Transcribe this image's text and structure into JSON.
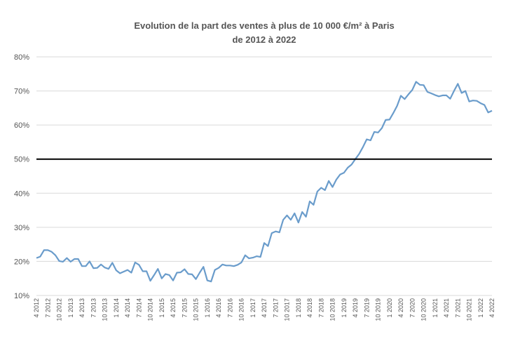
{
  "chart_data": {
    "type": "line",
    "title": "Evolution de la part des ventes à plus de 10 000 €/m² à Paris",
    "subtitle": "de 2012 à 2022",
    "xlabel": "",
    "ylabel": "",
    "ylim": [
      0.1,
      0.8
    ],
    "yticks": [
      "10%",
      "20%",
      "30%",
      "40%",
      "50%",
      "60%",
      "70%",
      "80%"
    ],
    "grid": true,
    "x_tick_labels": [
      "4 2012",
      "7 2012",
      "10 2012",
      "1 2013",
      "4 2013",
      "7 2013",
      "10 2013",
      "1 2014",
      "4 2014",
      "7 2014",
      "10 2014",
      "1 2015",
      "4 2015",
      "7 2015",
      "10 2015",
      "1 2016",
      "4 2016",
      "7 2016",
      "10 2016",
      "1 2017",
      "4 2017",
      "7 2017",
      "10 2017",
      "1 2018",
      "4 2018",
      "7 2018",
      "10 2018",
      "1 2019",
      "4 2019",
      "7 2019",
      "10 2019",
      "1 2020",
      "4 2020",
      "7 2020",
      "10 2020",
      "1 2021",
      "4 2021",
      "7 2021",
      "10 2021",
      "1 2022",
      "4 2022"
    ],
    "reference_line": {
      "y": 0.5,
      "color": "#000000"
    },
    "series": [
      {
        "color": "#6a9ccb",
        "start": "2012-04",
        "frequency": "monthly",
        "values": [
          0.21,
          0.214,
          0.233,
          0.233,
          0.228,
          0.218,
          0.201,
          0.199,
          0.21,
          0.199,
          0.207,
          0.207,
          0.186,
          0.186,
          0.2,
          0.18,
          0.181,
          0.191,
          0.182,
          0.178,
          0.196,
          0.174,
          0.165,
          0.17,
          0.175,
          0.167,
          0.197,
          0.19,
          0.171,
          0.171,
          0.143,
          0.16,
          0.178,
          0.15,
          0.163,
          0.16,
          0.144,
          0.167,
          0.168,
          0.177,
          0.163,
          0.162,
          0.148,
          0.167,
          0.184,
          0.144,
          0.141,
          0.175,
          0.181,
          0.191,
          0.188,
          0.188,
          0.186,
          0.19,
          0.197,
          0.218,
          0.209,
          0.211,
          0.215,
          0.213,
          0.254,
          0.245,
          0.283,
          0.288,
          0.285,
          0.322,
          0.335,
          0.322,
          0.341,
          0.314,
          0.345,
          0.331,
          0.376,
          0.366,
          0.405,
          0.416,
          0.409,
          0.436,
          0.418,
          0.44,
          0.455,
          0.46,
          0.475,
          0.484,
          0.5,
          0.515,
          0.535,
          0.558,
          0.555,
          0.58,
          0.578,
          0.591,
          0.615,
          0.616,
          0.635,
          0.656,
          0.686,
          0.676,
          0.69,
          0.703,
          0.727,
          0.718,
          0.717,
          0.697,
          0.693,
          0.688,
          0.684,
          0.687,
          0.687,
          0.677,
          0.7,
          0.721,
          0.694,
          0.7,
          0.669,
          0.672,
          0.671,
          0.664,
          0.659,
          0.637,
          0.642
        ]
      }
    ]
  }
}
